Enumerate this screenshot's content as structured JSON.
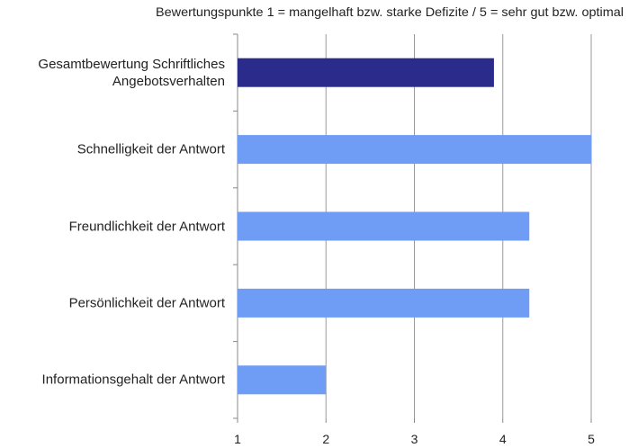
{
  "chart_data": {
    "type": "bar",
    "orientation": "horizontal",
    "title": "Bewertungspunkte 1 = mangelhaft bzw. starke Defizite / 5 = sehr gut bzw. optimal",
    "categories": [
      "Gesamtbewertung Schriftliches Angebotsverhalten",
      "Schnelligkeit der Antwort",
      "Freundlichkeit der Antwort",
      "Persönlichkeit der Antwort",
      "Informationsgehalt der Antwort"
    ],
    "values": [
      3.9,
      5,
      4.3,
      4.3,
      2
    ],
    "colors": [
      "#2b2b8c",
      "#6f9cf4",
      "#6f9cf4",
      "#6f9cf4",
      "#6f9cf4"
    ],
    "xlim": [
      1,
      5
    ],
    "xticks": [
      1,
      2,
      3,
      4,
      5
    ],
    "grid": true
  }
}
